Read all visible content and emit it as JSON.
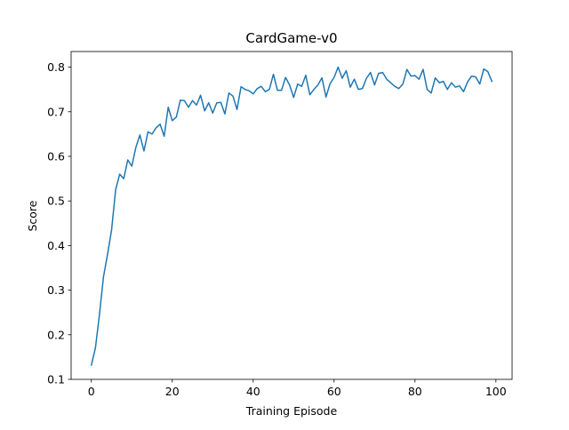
{
  "chart_data": {
    "type": "line",
    "title": "CardGame-v0",
    "xlabel": "Training Episode",
    "ylabel": "Score",
    "xlim": [
      -5,
      104
    ],
    "ylim": [
      0.1,
      0.835
    ],
    "xticks": [
      0,
      20,
      40,
      60,
      80,
      100
    ],
    "yticks": [
      0.1,
      0.2,
      0.3,
      0.4,
      0.5,
      0.6,
      0.7,
      0.8
    ],
    "xtick_labels": [
      "0",
      "20",
      "40",
      "60",
      "80",
      "100"
    ],
    "ytick_labels": [
      "0.1",
      "0.2",
      "0.3",
      "0.4",
      "0.5",
      "0.6",
      "0.7",
      "0.8"
    ],
    "grid": false,
    "series": [
      {
        "color": "#1f77b4",
        "x": [
          0,
          1,
          2,
          3,
          4,
          5,
          6,
          7,
          8,
          9,
          10,
          11,
          12,
          13,
          14,
          15,
          16,
          17,
          18,
          19,
          20,
          21,
          22,
          23,
          24,
          25,
          26,
          27,
          28,
          29,
          30,
          31,
          32,
          33,
          34,
          35,
          36,
          37,
          38,
          39,
          40,
          41,
          42,
          43,
          44,
          45,
          46,
          47,
          48,
          49,
          50,
          51,
          52,
          53,
          54,
          55,
          56,
          57,
          58,
          59,
          60,
          61,
          62,
          63,
          64,
          65,
          66,
          67,
          68,
          69,
          70,
          71,
          72,
          73,
          74,
          75,
          76,
          77,
          78,
          79,
          80,
          81,
          82,
          83,
          84,
          85,
          86,
          87,
          88,
          89,
          90,
          91,
          92,
          93,
          94,
          95,
          96,
          97,
          98,
          99
        ],
        "y": [
          0.132,
          0.17,
          0.245,
          0.33,
          0.38,
          0.435,
          0.525,
          0.56,
          0.55,
          0.592,
          0.578,
          0.62,
          0.648,
          0.612,
          0.655,
          0.65,
          0.664,
          0.672,
          0.645,
          0.71,
          0.68,
          0.688,
          0.726,
          0.725,
          0.71,
          0.725,
          0.715,
          0.737,
          0.702,
          0.72,
          0.697,
          0.72,
          0.721,
          0.695,
          0.742,
          0.735,
          0.705,
          0.756,
          0.75,
          0.747,
          0.74,
          0.752,
          0.757,
          0.745,
          0.75,
          0.784,
          0.748,
          0.748,
          0.777,
          0.76,
          0.732,
          0.762,
          0.757,
          0.782,
          0.738,
          0.75,
          0.76,
          0.776,
          0.733,
          0.763,
          0.777,
          0.8,
          0.775,
          0.792,
          0.755,
          0.773,
          0.75,
          0.752,
          0.775,
          0.788,
          0.76,
          0.786,
          0.788,
          0.773,
          0.765,
          0.757,
          0.752,
          0.762,
          0.795,
          0.78,
          0.781,
          0.773,
          0.795,
          0.75,
          0.742,
          0.776,
          0.765,
          0.768,
          0.75,
          0.765,
          0.755,
          0.758,
          0.745,
          0.767,
          0.78,
          0.778,
          0.762,
          0.796,
          0.79,
          0.768
        ]
      }
    ]
  }
}
